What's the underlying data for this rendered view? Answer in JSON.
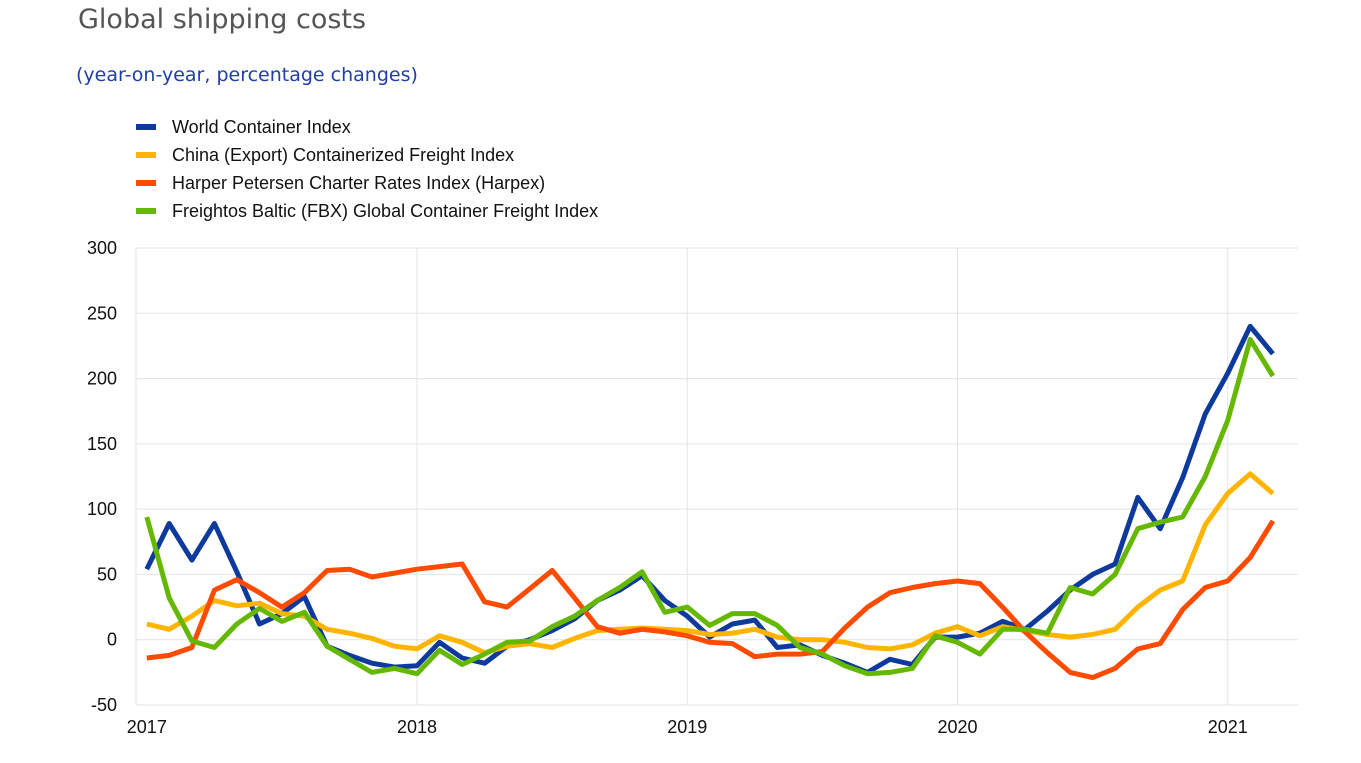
{
  "title": "Global shipping costs",
  "subtitle": "(year-on-year, percentage changes)",
  "chart_data": {
    "type": "line",
    "ylim": [
      -50,
      300
    ],
    "yticks": [
      "300",
      "250",
      "200",
      "150",
      "100",
      "50",
      "0",
      "-50"
    ],
    "ytick_values": [
      300,
      250,
      200,
      150,
      100,
      50,
      0,
      -50
    ],
    "xticks": [
      "2017",
      "2018",
      "2019",
      "2020",
      "2021"
    ],
    "xtick_values": [
      2017,
      2018,
      2019,
      2020,
      2021
    ],
    "xlim": [
      2016.96,
      2021.26
    ],
    "grid": true,
    "legend_position": "top-left",
    "series": [
      {
        "name": "World Container Index",
        "color": "#0d3a9c",
        "x": [
          2017.0,
          2017.083,
          2017.167,
          2017.25,
          2017.333,
          2017.417,
          2017.5,
          2017.583,
          2017.667,
          2017.75,
          2017.833,
          2017.917,
          2018.0,
          2018.083,
          2018.167,
          2018.25,
          2018.333,
          2018.417,
          2018.5,
          2018.583,
          2018.667,
          2018.75,
          2018.833,
          2018.917,
          2019.0,
          2019.083,
          2019.167,
          2019.25,
          2019.333,
          2019.417,
          2019.5,
          2019.583,
          2019.667,
          2019.75,
          2019.833,
          2019.917,
          2020.0,
          2020.083,
          2020.167,
          2020.25,
          2020.333,
          2020.417,
          2020.5,
          2020.583,
          2020.667,
          2020.75,
          2020.833,
          2020.917,
          2021.0,
          2021.083,
          2021.167
        ],
        "values": [
          54,
          89,
          61,
          89,
          52,
          12,
          20,
          33,
          -5,
          -12,
          -18,
          -21,
          -20,
          -2,
          -14,
          -18,
          -5,
          0,
          7,
          16,
          30,
          38,
          49,
          30,
          18,
          2,
          12,
          15,
          -6,
          -4,
          -12,
          -18,
          -25,
          -15,
          -19,
          2,
          2,
          5,
          14,
          8,
          22,
          38,
          50,
          58,
          109,
          85,
          124,
          173,
          204,
          240,
          219
        ]
      },
      {
        "name": "China (Export) Containerized Freight Index",
        "color": "#ffb400",
        "x": [
          2017.0,
          2017.083,
          2017.167,
          2017.25,
          2017.333,
          2017.417,
          2017.5,
          2017.583,
          2017.667,
          2017.75,
          2017.833,
          2017.917,
          2018.0,
          2018.083,
          2018.167,
          2018.25,
          2018.333,
          2018.417,
          2018.5,
          2018.583,
          2018.667,
          2018.75,
          2018.833,
          2018.917,
          2019.0,
          2019.083,
          2019.167,
          2019.25,
          2019.333,
          2019.417,
          2019.5,
          2019.583,
          2019.667,
          2019.75,
          2019.833,
          2019.917,
          2020.0,
          2020.083,
          2020.167,
          2020.25,
          2020.333,
          2020.417,
          2020.5,
          2020.583,
          2020.667,
          2020.75,
          2020.833,
          2020.917,
          2021.0,
          2021.083,
          2021.167
        ],
        "values": [
          12,
          8,
          18,
          30,
          26,
          28,
          20,
          18,
          8,
          5,
          1,
          -5,
          -7,
          3,
          -2,
          -10,
          -5,
          -3,
          -6,
          1,
          7,
          8,
          9,
          8,
          7,
          4,
          5,
          8,
          2,
          0,
          0,
          -2,
          -6,
          -7,
          -4,
          5,
          10,
          3,
          10,
          7,
          4,
          2,
          4,
          8,
          25,
          38,
          45,
          88,
          112,
          127,
          112
        ]
      },
      {
        "name": "Harper Petersen Charter Rates Index (Harpex)",
        "color": "#ff4b00",
        "x": [
          2017.0,
          2017.083,
          2017.167,
          2017.25,
          2017.333,
          2017.417,
          2017.5,
          2017.583,
          2017.667,
          2017.75,
          2017.833,
          2017.917,
          2018.0,
          2018.083,
          2018.167,
          2018.25,
          2018.333,
          2018.417,
          2018.5,
          2018.583,
          2018.667,
          2018.75,
          2018.833,
          2018.917,
          2019.0,
          2019.083,
          2019.167,
          2019.25,
          2019.333,
          2019.417,
          2019.5,
          2019.583,
          2019.667,
          2019.75,
          2019.833,
          2019.917,
          2020.0,
          2020.083,
          2020.167,
          2020.25,
          2020.333,
          2020.417,
          2020.5,
          2020.583,
          2020.667,
          2020.75,
          2020.833,
          2020.917,
          2021.0,
          2021.083,
          2021.167
        ],
        "values": [
          -14,
          -12,
          -6,
          38,
          46,
          36,
          25,
          36,
          53,
          54,
          48,
          51,
          54,
          56,
          58,
          29,
          25,
          39,
          53,
          32,
          10,
          5,
          8,
          6,
          3,
          -2,
          -3,
          -13,
          -11,
          -11,
          -9,
          9,
          25,
          36,
          40,
          43,
          45,
          43,
          25,
          6,
          -10,
          -25,
          -29,
          -22,
          -7,
          -3,
          23,
          40,
          45,
          63,
          91
        ]
      },
      {
        "name": "Freightos Baltic (FBX) Global Container Freight Index",
        "color": "#65b800",
        "x": [
          2017.0,
          2017.083,
          2017.167,
          2017.25,
          2017.333,
          2017.417,
          2017.5,
          2017.583,
          2017.667,
          2017.75,
          2017.833,
          2017.917,
          2018.0,
          2018.083,
          2018.167,
          2018.25,
          2018.333,
          2018.417,
          2018.5,
          2018.583,
          2018.667,
          2018.75,
          2018.833,
          2018.917,
          2019.0,
          2019.083,
          2019.167,
          2019.25,
          2019.333,
          2019.417,
          2019.5,
          2019.583,
          2019.667,
          2019.75,
          2019.833,
          2019.917,
          2020.0,
          2020.083,
          2020.167,
          2020.25,
          2020.333,
          2020.417,
          2020.5,
          2020.583,
          2020.667,
          2020.75,
          2020.833,
          2020.917,
          2021.0,
          2021.083,
          2021.167
        ],
        "values": [
          94,
          32,
          -1,
          -6,
          12,
          24,
          14,
          21,
          -5,
          -15,
          -25,
          -22,
          -26,
          -8,
          -19,
          -11,
          -2,
          -1,
          10,
          18,
          30,
          40,
          52,
          21,
          25,
          11,
          20,
          20,
          11,
          -6,
          -11,
          -20,
          -26,
          -25,
          -22,
          3,
          -2,
          -11,
          8,
          8,
          5,
          40,
          35,
          50,
          85,
          90,
          94,
          125,
          168,
          230,
          202
        ]
      }
    ]
  }
}
